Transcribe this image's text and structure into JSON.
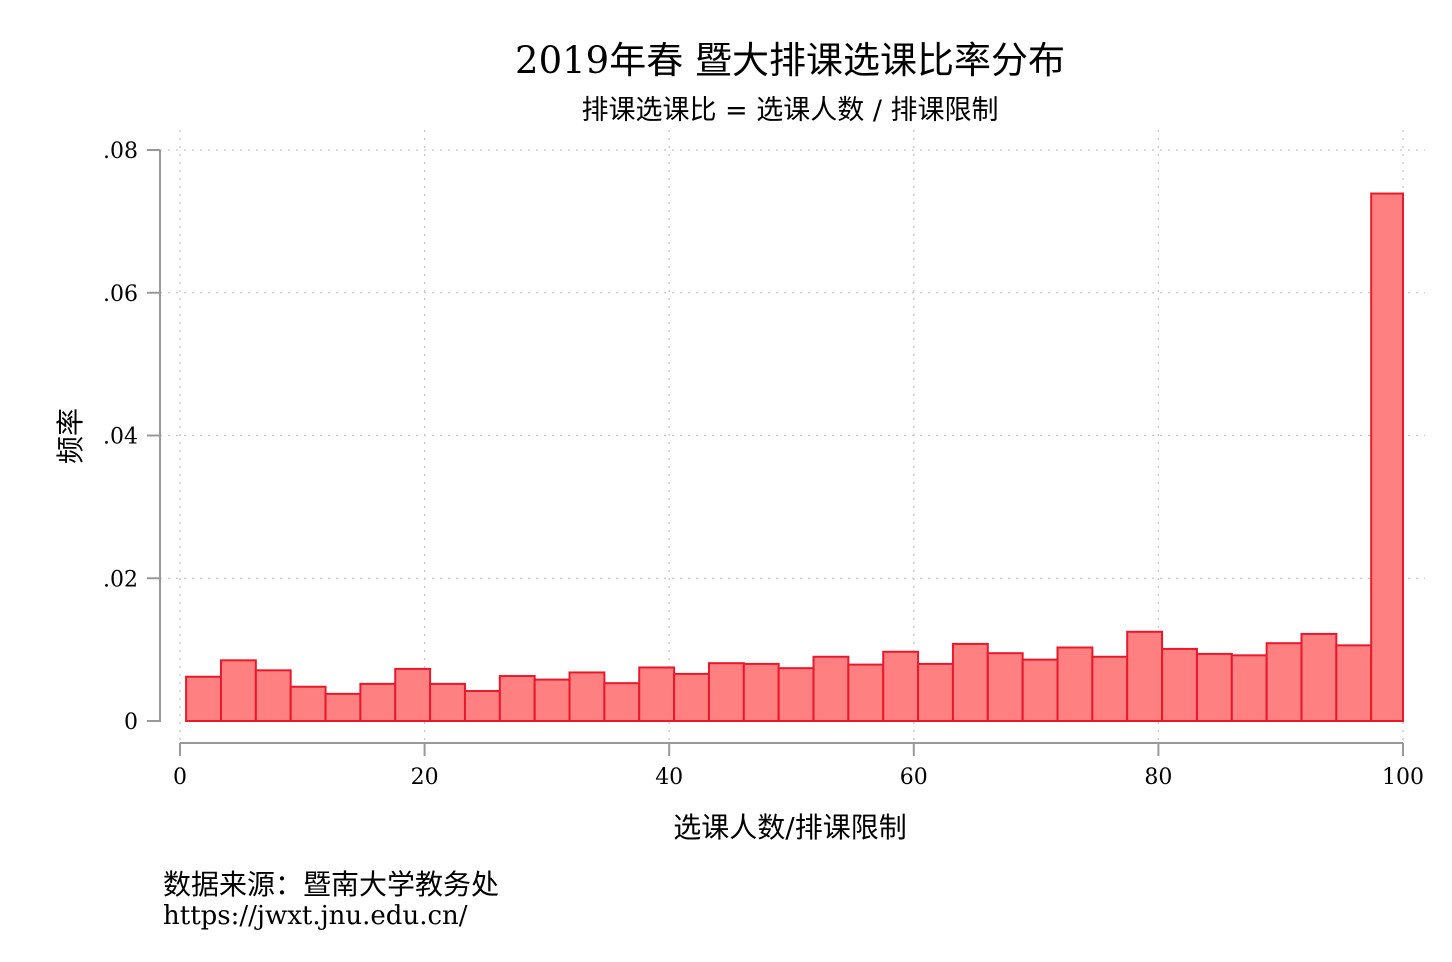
{
  "chart_data": {
    "type": "bar",
    "title": "2019年春 暨大排课选课比率分布",
    "subtitle": "排课选课比 = 选课人数 / 排课限制",
    "xlabel": "选课人数/排课限制",
    "ylabel": "频率",
    "xlim": [
      0,
      100
    ],
    "ylim": [
      0,
      0.08
    ],
    "x_ticks": [
      0,
      20,
      40,
      60,
      80,
      100
    ],
    "x_tick_labels": [
      "0",
      "20",
      "40",
      "60",
      "80",
      "100"
    ],
    "y_ticks": [
      0,
      0.02,
      0.04,
      0.06,
      0.08
    ],
    "y_tick_labels": [
      "0",
      ".02",
      ".04",
      ".06",
      ".08"
    ],
    "grid": true,
    "bar_fill": "#ff8080",
    "bar_edge": "#e8192c",
    "bins": [
      {
        "start": 0.5,
        "end": 3.35,
        "value": 0.0062
      },
      {
        "start": 3.35,
        "end": 6.2,
        "value": 0.0085
      },
      {
        "start": 6.2,
        "end": 9.05,
        "value": 0.0071
      },
      {
        "start": 9.05,
        "end": 11.9,
        "value": 0.0048
      },
      {
        "start": 11.9,
        "end": 14.75,
        "value": 0.0038
      },
      {
        "start": 14.75,
        "end": 17.6,
        "value": 0.0052
      },
      {
        "start": 17.6,
        "end": 20.45,
        "value": 0.0073
      },
      {
        "start": 20.45,
        "end": 23.3,
        "value": 0.0052
      },
      {
        "start": 23.3,
        "end": 26.15,
        "value": 0.0042
      },
      {
        "start": 26.15,
        "end": 29.0,
        "value": 0.0063
      },
      {
        "start": 29.0,
        "end": 31.85,
        "value": 0.0058
      },
      {
        "start": 31.85,
        "end": 34.7,
        "value": 0.0068
      },
      {
        "start": 34.7,
        "end": 37.55,
        "value": 0.0053
      },
      {
        "start": 37.55,
        "end": 40.4,
        "value": 0.0075
      },
      {
        "start": 40.4,
        "end": 43.25,
        "value": 0.0066
      },
      {
        "start": 43.25,
        "end": 46.1,
        "value": 0.0081
      },
      {
        "start": 46.1,
        "end": 48.95,
        "value": 0.008
      },
      {
        "start": 48.95,
        "end": 51.8,
        "value": 0.0074
      },
      {
        "start": 51.8,
        "end": 54.65,
        "value": 0.009
      },
      {
        "start": 54.65,
        "end": 57.5,
        "value": 0.0079
      },
      {
        "start": 57.5,
        "end": 60.35,
        "value": 0.0097
      },
      {
        "start": 60.35,
        "end": 63.2,
        "value": 0.008
      },
      {
        "start": 63.2,
        "end": 66.05,
        "value": 0.0108
      },
      {
        "start": 66.05,
        "end": 68.9,
        "value": 0.0095
      },
      {
        "start": 68.9,
        "end": 71.75,
        "value": 0.0086
      },
      {
        "start": 71.75,
        "end": 74.6,
        "value": 0.0103
      },
      {
        "start": 74.6,
        "end": 77.45,
        "value": 0.009
      },
      {
        "start": 77.45,
        "end": 80.3,
        "value": 0.0125
      },
      {
        "start": 80.3,
        "end": 83.15,
        "value": 0.0101
      },
      {
        "start": 83.15,
        "end": 86.0,
        "value": 0.0094
      },
      {
        "start": 86.0,
        "end": 88.85,
        "value": 0.0092
      },
      {
        "start": 88.85,
        "end": 91.7,
        "value": 0.0109
      },
      {
        "start": 91.7,
        "end": 94.55,
        "value": 0.0122
      },
      {
        "start": 94.55,
        "end": 97.4,
        "value": 0.0106
      },
      {
        "start": 97.4,
        "end": 100.0,
        "value": 0.0739
      }
    ]
  },
  "note": {
    "source_label": "数据来源：暨南大学教务处",
    "source_url": "https://jwxt.jnu.edu.cn/"
  }
}
